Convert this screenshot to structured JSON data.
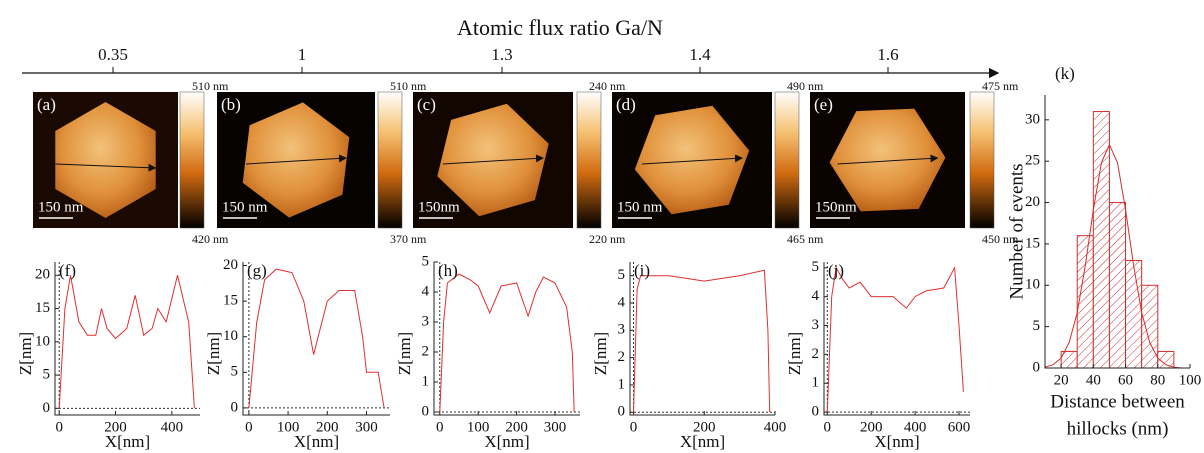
{
  "axis": {
    "title": "Atomic flux ratio Ga/N",
    "categories": [
      "0.35",
      "1",
      "1.3",
      "1.4",
      "1.6"
    ]
  },
  "images": [
    {
      "label": "(a)",
      "scale_bar": "150 nm",
      "cbar_top": "510 nm",
      "cbar_bottom": "420 nm"
    },
    {
      "label": "(b)",
      "scale_bar": "150 nm",
      "cbar_top": "510 nm",
      "cbar_bottom": "370 nm"
    },
    {
      "label": "(c)",
      "scale_bar": "150nm",
      "cbar_top": "240 nm",
      "cbar_bottom": "220 nm"
    },
    {
      "label": "(d)",
      "scale_bar": "150 nm",
      "cbar_top": "490 nm",
      "cbar_bottom": "465 nm"
    },
    {
      "label": "(e)",
      "scale_bar": "150nm",
      "cbar_top": "475 nm",
      "cbar_bottom": "450 nm"
    }
  ],
  "chart_data": [
    {
      "type": "line",
      "title": "(f)",
      "xlabel": "X[nm]",
      "ylabel": "Z[nm]",
      "color": "#e03030",
      "x": [
        0,
        20,
        40,
        70,
        100,
        130,
        150,
        170,
        200,
        240,
        270,
        300,
        330,
        350,
        380,
        420,
        460,
        480
      ],
      "values": [
        0,
        15,
        20,
        13,
        11,
        11,
        15,
        12,
        10.5,
        12,
        17,
        11,
        12,
        15,
        13,
        20,
        13,
        0
      ],
      "xlim": [
        -15,
        500
      ],
      "xticks": [
        0,
        200,
        400
      ],
      "ylim": [
        -1,
        22
      ],
      "yticks": [
        0,
        5,
        10,
        15,
        20
      ]
    },
    {
      "type": "line",
      "title": "(g)",
      "xlabel": "X[nm]",
      "ylabel": "Z[nm]",
      "color": "#e03030",
      "x": [
        0,
        20,
        40,
        70,
        110,
        140,
        165,
        200,
        230,
        270,
        290,
        300,
        330,
        345
      ],
      "values": [
        0,
        12,
        18,
        19.5,
        19,
        15,
        7.5,
        15,
        16.5,
        16.5,
        10,
        5,
        5,
        0
      ],
      "xlim": [
        -15,
        360
      ],
      "xticks": [
        0,
        100,
        200,
        300
      ],
      "ylim": [
        -1,
        20.5
      ],
      "yticks": [
        0,
        5,
        10,
        15,
        20
      ]
    },
    {
      "type": "line",
      "title": "(h)",
      "xlabel": "X[nm]",
      "ylabel": "Z[nm]",
      "color": "#e03030",
      "x": [
        0,
        10,
        20,
        50,
        80,
        100,
        130,
        160,
        200,
        230,
        250,
        270,
        300,
        330,
        345,
        350
      ],
      "values": [
        0,
        3,
        4.3,
        4.6,
        4.4,
        4.2,
        3.3,
        4.2,
        4.3,
        3.2,
        4,
        4.5,
        4.3,
        3.5,
        2,
        0
      ],
      "xlim": [
        -15,
        365
      ],
      "xticks": [
        0,
        100,
        200,
        300
      ],
      "ylim": [
        -0.1,
        5
      ],
      "yticks": [
        0,
        1,
        2,
        3,
        4,
        5
      ]
    },
    {
      "type": "line",
      "title": "(i)",
      "xlabel": "X[nm]",
      "ylabel": "Z[nm]",
      "color": "#e03030",
      "x": [
        0,
        10,
        20,
        100,
        150,
        200,
        250,
        300,
        370,
        380,
        385
      ],
      "values": [
        0,
        4.5,
        5,
        5,
        4.9,
        4.8,
        4.9,
        5,
        5.2,
        3,
        0
      ],
      "xlim": [
        -10,
        400
      ],
      "xticks": [
        0,
        200,
        400
      ],
      "ylim": [
        -0.1,
        5.5
      ],
      "yticks": [
        0,
        1,
        2,
        3,
        4,
        5
      ]
    },
    {
      "type": "line",
      "title": "(j)",
      "xlabel": "X[nm]",
      "ylabel": "Z[nm]",
      "color": "#e03030",
      "x": [
        0,
        20,
        40,
        70,
        100,
        150,
        200,
        300,
        360,
        400,
        450,
        530,
        580,
        600,
        620
      ],
      "values": [
        0,
        4,
        5,
        4.6,
        4.3,
        4.5,
        4,
        4,
        3.6,
        4,
        4.2,
        4.3,
        5,
        3,
        0.7
      ],
      "xlim": [
        -15,
        650
      ],
      "xticks": [
        0,
        200,
        400,
        600
      ],
      "ylim": [
        -0.1,
        5.2
      ],
      "yticks": [
        0,
        1,
        2,
        3,
        4,
        5
      ]
    },
    {
      "type": "histogram",
      "title": "(k)",
      "xlabel": [
        "Distance between",
        "hillocks (nm)"
      ],
      "ylabel": "Number of events",
      "color": "#d03030",
      "bins": [
        20,
        30,
        40,
        50,
        60,
        70,
        80,
        90
      ],
      "values": [
        2,
        16,
        31,
        20,
        13,
        10,
        2
      ],
      "curve": {
        "x": [
          10,
          15,
          20,
          25,
          30,
          35,
          40,
          45,
          50,
          55,
          60,
          65,
          70,
          75,
          80,
          85,
          90,
          95,
          100
        ],
        "values": [
          0.1,
          0.4,
          1.2,
          3.1,
          6.7,
          12.4,
          19.1,
          24.8,
          27,
          24.8,
          19.1,
          12.4,
          6.7,
          3.1,
          1.2,
          0.4,
          0.1,
          0,
          0
        ]
      },
      "xlim": [
        10,
        100
      ],
      "xticks": [
        20,
        40,
        60,
        80,
        100
      ],
      "ylim": [
        0,
        33
      ],
      "yticks": [
        0,
        5,
        10,
        15,
        20,
        25,
        30
      ]
    }
  ]
}
